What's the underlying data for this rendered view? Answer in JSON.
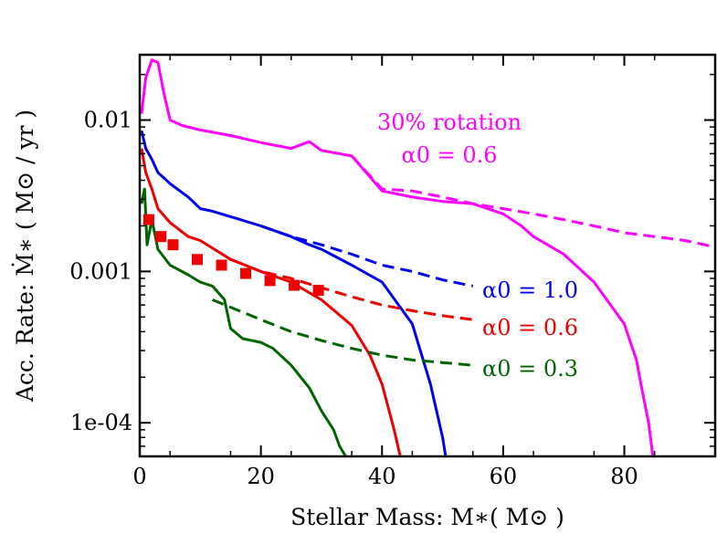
{
  "chart_data": {
    "type": "line",
    "title": "",
    "xlabel": "Stellar Mass: M∗( M⊙ )",
    "ylabel": "Acc. Rate: Ṁ∗ ( M⊙ / yr )",
    "xlim": [
      0,
      95
    ],
    "ylim": [
      6e-05,
      0.027
    ],
    "yscale": "log",
    "grid": false,
    "x_ticks": [
      0,
      20,
      40,
      60,
      80
    ],
    "y_ticks": [
      {
        "value": 0.01,
        "label": "0.01"
      },
      {
        "value": 0.001,
        "label": "0.001"
      },
      {
        "value": 0.0001,
        "label": "1e-04"
      }
    ],
    "colors": {
      "magenta": "#ff00ff",
      "blue": "#0000ee",
      "red": "#ee0000",
      "green": "#006400"
    },
    "series": [
      {
        "color": "#ff00ff",
        "style": "solid",
        "x": [
          0.3,
          1,
          2,
          3,
          4,
          5,
          7,
          10,
          15,
          20,
          25,
          28,
          30,
          35,
          40,
          45,
          50,
          55,
          60,
          63,
          65,
          70,
          75,
          80,
          82,
          83,
          84,
          84.5,
          84.7,
          84.7
        ],
        "y": [
          0.011,
          0.019,
          0.025,
          0.024,
          0.015,
          0.01,
          0.0092,
          0.0086,
          0.0079,
          0.0071,
          0.0065,
          0.0072,
          0.0063,
          0.0058,
          0.0034,
          0.0031,
          0.0029,
          0.0028,
          0.0024,
          0.002,
          0.0017,
          0.0013,
          0.00085,
          0.00045,
          0.00026,
          0.00016,
          0.0001,
          7e-05,
          6e-05,
          5e-05
        ]
      },
      {
        "color": "#ff00ff",
        "style": "dashed",
        "x": [
          35,
          40,
          45,
          50,
          55,
          60,
          65,
          70,
          75,
          80,
          85,
          90,
          95
        ],
        "y": [
          0.0058,
          0.0035,
          0.0034,
          0.0031,
          0.0028,
          0.0026,
          0.0024,
          0.0022,
          0.002,
          0.0018,
          0.0017,
          0.0016,
          0.00145
        ]
      },
      {
        "color": "#0000ee",
        "style": "solid",
        "x": [
          0.3,
          1,
          2,
          3,
          5,
          8,
          10,
          12,
          15,
          20,
          25,
          28,
          30,
          35,
          40,
          45,
          48,
          50,
          50.5
        ],
        "y": [
          0.0085,
          0.0065,
          0.0055,
          0.0045,
          0.0038,
          0.0031,
          0.0026,
          0.0025,
          0.0023,
          0.002,
          0.0017,
          0.0015,
          0.0014,
          0.0011,
          0.00085,
          0.00045,
          0.00018,
          8e-05,
          6e-05
        ]
      },
      {
        "color": "#0000ee",
        "style": "dashed",
        "x": [
          20,
          25,
          30,
          35,
          40,
          45,
          50,
          55
        ],
        "y": [
          0.002,
          0.0017,
          0.0015,
          0.0013,
          0.0011,
          0.001,
          0.00088,
          0.0008
        ]
      },
      {
        "color": "#ee0000",
        "style": "solid",
        "x": [
          0.3,
          1,
          2,
          3,
          5,
          8,
          10,
          15,
          20,
          25,
          30,
          35,
          38,
          40,
          42,
          43
        ],
        "y": [
          0.0065,
          0.0045,
          0.0035,
          0.0026,
          0.0021,
          0.0017,
          0.0016,
          0.0012,
          0.001,
          0.00085,
          0.00065,
          0.00044,
          0.00028,
          0.00018,
          9e-05,
          6e-05
        ]
      },
      {
        "color": "#ee0000",
        "style": "dashed",
        "x": [
          15,
          20,
          25,
          30,
          35,
          40,
          45,
          50,
          55
        ],
        "y": [
          0.0012,
          0.001,
          0.0009,
          0.00078,
          0.00068,
          0.0006,
          0.00055,
          0.00051,
          0.00048
        ]
      },
      {
        "color": "#006400",
        "style": "solid",
        "x": [
          0.3,
          0.8,
          1.2,
          2,
          3,
          5,
          8,
          10,
          12,
          14,
          15,
          17,
          20,
          22,
          25,
          28,
          30,
          32,
          33,
          34
        ],
        "y": [
          0.0028,
          0.0035,
          0.0015,
          0.0022,
          0.0014,
          0.0011,
          0.00095,
          0.00085,
          0.0008,
          0.00065,
          0.00042,
          0.00036,
          0.00034,
          0.00031,
          0.00024,
          0.00017,
          0.00012,
          9e-05,
          7e-05,
          6e-05
        ]
      },
      {
        "color": "#006400",
        "style": "dashed",
        "x": [
          12,
          15,
          20,
          25,
          30,
          35,
          40,
          45,
          50,
          55
        ],
        "y": [
          0.00065,
          0.00058,
          0.00048,
          0.0004,
          0.00035,
          0.00031,
          0.00028,
          0.00026,
          0.00025,
          0.00024
        ]
      }
    ],
    "markers": {
      "color": "#ee0000",
      "shape": "square",
      "x": [
        1.5,
        3.5,
        5.5,
        9.5,
        13.5,
        17.5,
        21.5,
        25.5,
        29.5
      ],
      "y": [
        0.0022,
        0.0017,
        0.0015,
        0.0012,
        0.0011,
        0.00097,
        0.00087,
        0.00081,
        0.00075
      ]
    },
    "annotations": [
      {
        "text": "30% rotation",
        "color": "#ff00ff"
      },
      {
        "text": "α0 = 0.6",
        "color": "#ff00ff"
      },
      {
        "text": "α0 = 1.0",
        "color": "#0000ee"
      },
      {
        "text": "α0 = 0.6",
        "color": "#ee0000"
      },
      {
        "text": "α0 = 0.3",
        "color": "#006400"
      }
    ]
  }
}
